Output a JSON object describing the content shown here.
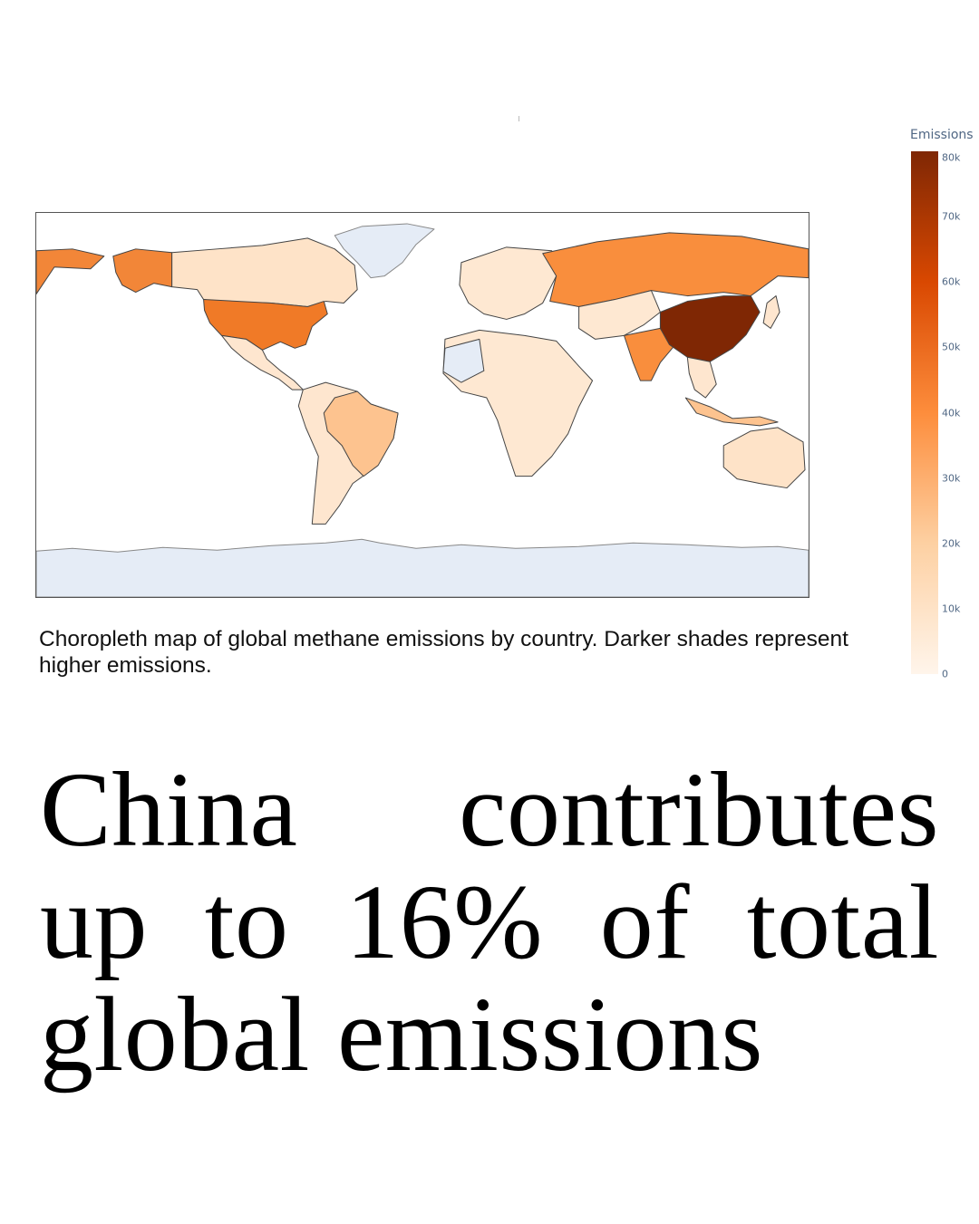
{
  "map": {
    "colorbar": {
      "title": "Emissions",
      "min": 0,
      "max": 80000,
      "ticks": [
        {
          "value": 80000,
          "label": "80k"
        },
        {
          "value": 70000,
          "label": "70k"
        },
        {
          "value": 60000,
          "label": "60k"
        },
        {
          "value": 50000,
          "label": "50k"
        },
        {
          "value": 40000,
          "label": "40k"
        },
        {
          "value": 30000,
          "label": "30k"
        },
        {
          "value": 20000,
          "label": "20k"
        },
        {
          "value": 10000,
          "label": "10k"
        },
        {
          "value": 0,
          "label": "0"
        }
      ],
      "stops": [
        "#fff5eb",
        "#fdd0a2",
        "#fd8d3c",
        "#d94801",
        "#7f2704"
      ]
    },
    "colors": {
      "no_data": "#e5ecf6",
      "border": "#444444",
      "frame": "#555555"
    },
    "caption": "Choropleth map of global methane emissions by country. Darker shades represent higher emissions."
  },
  "headline": "China contributes up to 16% of total global emissions"
}
